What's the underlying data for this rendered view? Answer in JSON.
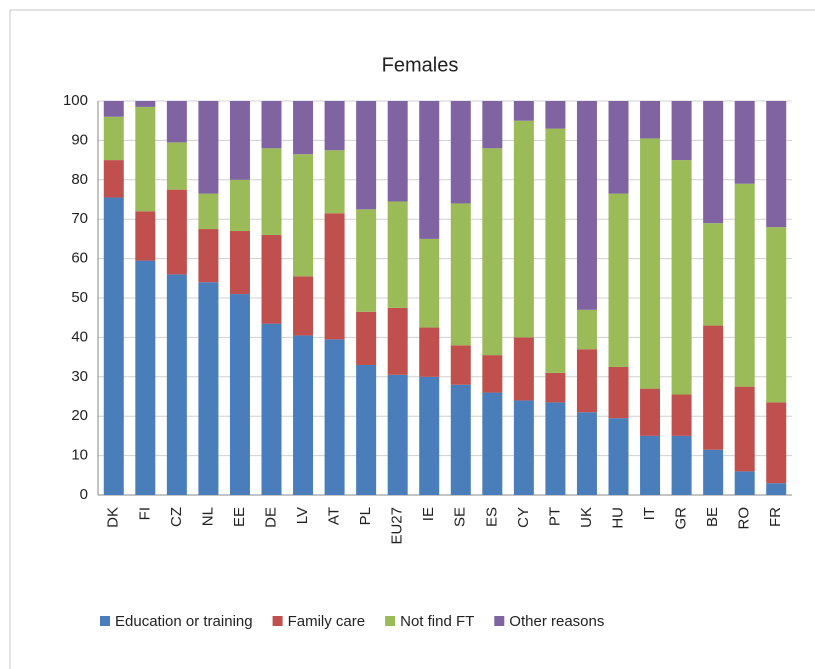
{
  "chart_data": {
    "type": "stacked_bar",
    "title": "Females",
    "categories": [
      "DK",
      "FI",
      "CZ",
      "NL",
      "EE",
      "DE",
      "LV",
      "AT",
      "PL",
      "EU27",
      "IE",
      "SE",
      "ES",
      "CY",
      "PT",
      "UK",
      "HU",
      "IT",
      "GR",
      "BE",
      "RO",
      "FR"
    ],
    "series": [
      {
        "name": "Education or training",
        "color": "#4a7ebb",
        "values": [
          75.5,
          59.5,
          56,
          54,
          51,
          43.5,
          40.5,
          39.5,
          33,
          30.5,
          30,
          28,
          26,
          24,
          23.5,
          21,
          19.5,
          15,
          15,
          11.5,
          6,
          3
        ]
      },
      {
        "name": "Family care",
        "color": "#c0504d",
        "values": [
          9.5,
          12.5,
          21.5,
          13.5,
          16,
          22.5,
          15,
          32,
          13.5,
          17,
          12.5,
          10,
          9.5,
          16,
          7.5,
          16,
          13,
          12,
          10.5,
          31.5,
          21.5,
          20.5
        ]
      },
      {
        "name": "Not find FT",
        "color": "#9bbb59",
        "values": [
          11,
          26.5,
          12,
          9,
          13,
          22,
          31,
          16,
          26,
          27,
          22.5,
          36,
          52.5,
          55,
          62,
          10,
          44,
          63.5,
          59.5,
          26,
          51.5,
          44.5
        ]
      },
      {
        "name": "Other reasons",
        "color": "#8064a2",
        "values": [
          4,
          1.5,
          10.5,
          23.5,
          20,
          12,
          13.5,
          12.5,
          27.5,
          25.5,
          35,
          26,
          12,
          5,
          7,
          53,
          23.5,
          9.5,
          15,
          31,
          21,
          32
        ]
      }
    ],
    "ylim": [
      0,
      100
    ],
    "yticks": [
      0,
      10,
      20,
      30,
      40,
      50,
      60,
      70,
      80,
      90,
      100
    ],
    "grid": true
  }
}
